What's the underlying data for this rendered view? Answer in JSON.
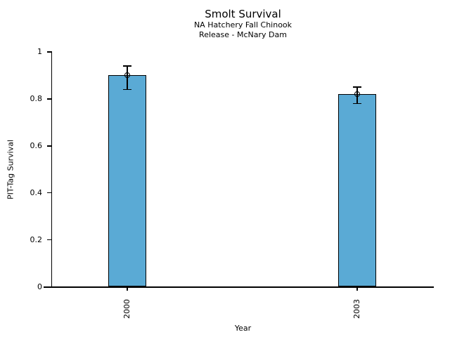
{
  "chart_data": {
    "type": "bar",
    "title": "Smolt Survival",
    "subtitle1": "NA Hatchery Fall Chinook",
    "subtitle2": "Release - McNary Dam",
    "xlabel": "Year",
    "ylabel": "PIT-Tag Survival",
    "categories": [
      "2000",
      "2003"
    ],
    "values": [
      0.9,
      0.82
    ],
    "error_low": [
      0.84,
      0.78
    ],
    "error_high": [
      0.94,
      0.85
    ],
    "ylim": [
      0,
      1
    ],
    "yticks": [
      0,
      0.2,
      0.4,
      0.6,
      0.8,
      1
    ],
    "ytick_labels": [
      "0",
      "0.2",
      "0.4",
      "0.6",
      "0.8",
      "1"
    ],
    "bar_color": "#5aaad5",
    "bar_edge_color": "#000000",
    "error_bar_color": "#000000",
    "marker": "open-circle",
    "grid": false,
    "legend": false,
    "spines": [
      "left",
      "bottom"
    ]
  }
}
